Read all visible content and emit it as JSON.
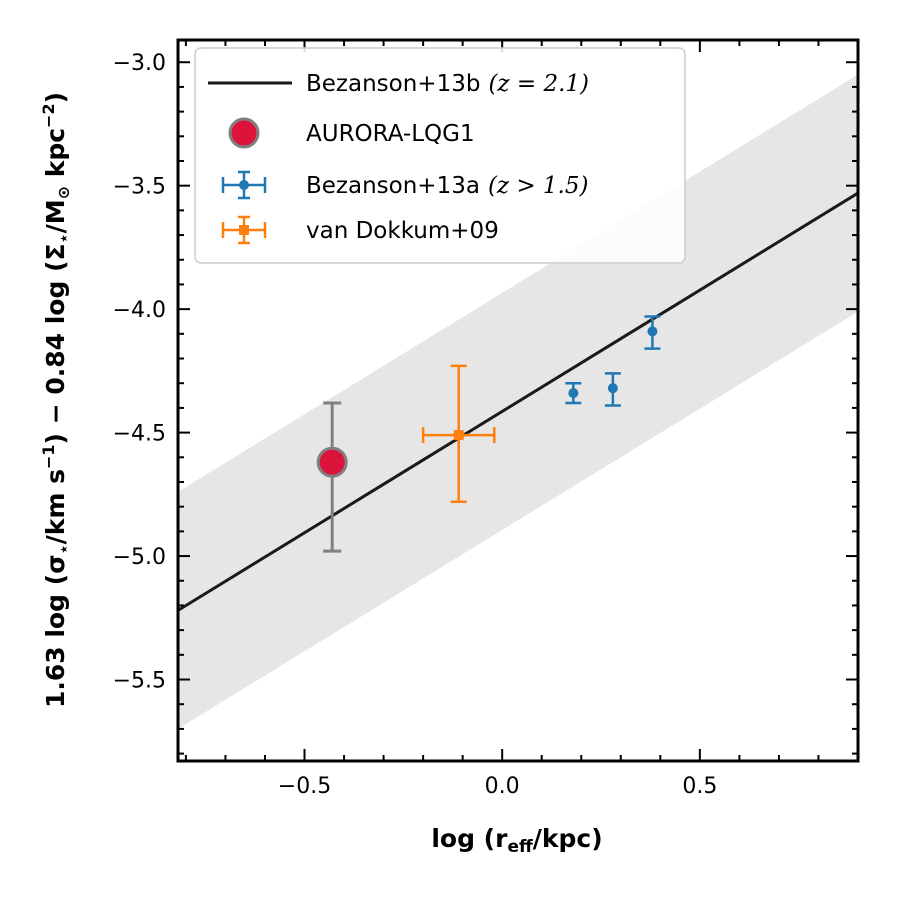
{
  "chart_data": {
    "type": "scatter",
    "xlabel": "log (r_eff / kpc)",
    "ylabel": "1.63 log (σ⋆ / km s⁻¹) − 0.84 log (Σ⋆ / M⊙ kpc⁻²)",
    "xlabel_parts": {
      "pre": "log (r",
      "sub": "eff",
      "post": "/kpc)"
    },
    "ylabel_parts": {
      "a": "1.63 log (σ",
      "b": "⋆",
      "c": "/km s",
      "d": "−1",
      "e": ") − 0.84 log (Σ",
      "f": "⋆",
      "g": "/M",
      "h": "⊙",
      "i": " kpc",
      "j": "−2",
      "k": ")"
    },
    "xlim": [
      -0.82,
      0.9
    ],
    "ylim": [
      -5.83,
      -2.91
    ],
    "xticks": [
      -0.5,
      0.0,
      0.5
    ],
    "xtick_labels": [
      "−0.5",
      "0.0",
      "0.5"
    ],
    "yticks": [
      -5.5,
      -5.0,
      -4.5,
      -4.0,
      -3.5,
      -3.0
    ],
    "ytick_labels": [
      "−5.5",
      "−5.0",
      "−4.5",
      "−4.0",
      "−3.5",
      "−3.0"
    ],
    "relation": {
      "name": "Bezanson+13b (z = 2.1)",
      "x": [
        -0.82,
        0.9
      ],
      "y": [
        -5.22,
        -3.53
      ],
      "band_halfwidth": 0.48,
      "color": "#1a1a1a",
      "band_color": "#e6e6e6"
    },
    "series": [
      {
        "name": "AURORA-LQG1",
        "color": "#dc143c",
        "edge_color": "#808080",
        "err_color": "#808080",
        "marker": "large-circle",
        "points": [
          {
            "x": -0.43,
            "y": -4.62,
            "yerr_low": 0.36,
            "yerr_high": 0.24
          }
        ]
      },
      {
        "name": "Bezanson+13a (z > 1.5)",
        "color": "#1f77b4",
        "err_color": "#1f77b4",
        "marker": "circle",
        "points": [
          {
            "x": 0.18,
            "y": -4.34,
            "yerr_low": 0.04,
            "yerr_high": 0.04
          },
          {
            "x": 0.28,
            "y": -4.32,
            "yerr_low": 0.07,
            "yerr_high": 0.06
          },
          {
            "x": 0.38,
            "y": -4.09,
            "yerr_low": 0.07,
            "yerr_high": 0.06
          }
        ]
      },
      {
        "name": "van Dokkum+09",
        "color": "#ff7f0e",
        "err_color": "#ff7f0e",
        "marker": "square",
        "points": [
          {
            "x": -0.11,
            "y": -4.51,
            "yerr_low": 0.27,
            "yerr_high": 0.28,
            "xerr": 0.09
          }
        ]
      }
    ],
    "legend": {
      "placement": "top-left",
      "entries": [
        {
          "label": "Bezanson+13b",
          "suffix": "(z = 2.1)"
        },
        {
          "label": "AURORA-LQG1",
          "suffix": ""
        },
        {
          "label": "Bezanson+13a",
          "suffix": "(z > 1.5)"
        },
        {
          "label": "van Dokkum+09",
          "suffix": ""
        }
      ]
    }
  }
}
